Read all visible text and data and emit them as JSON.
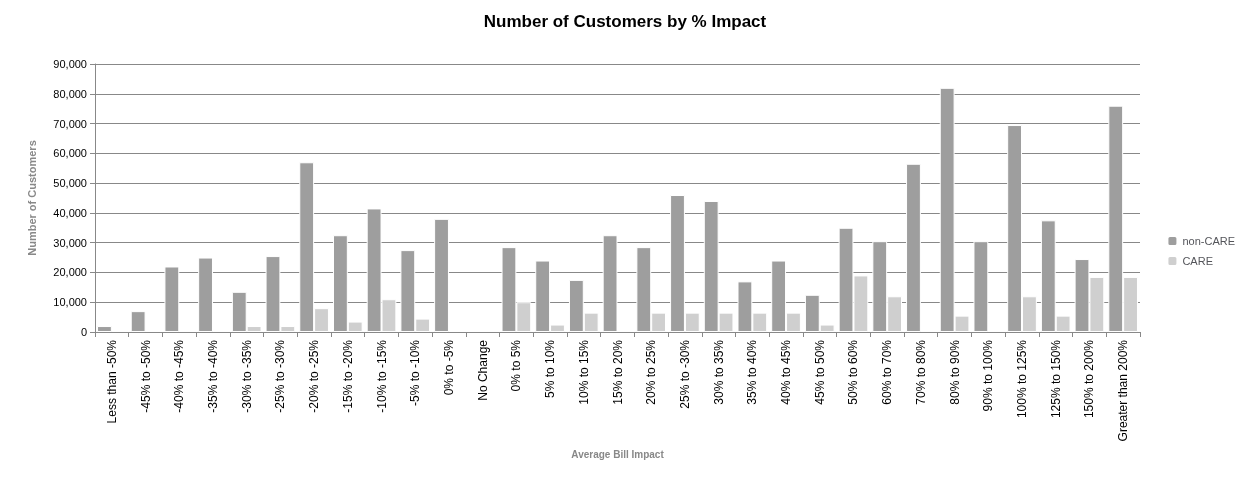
{
  "chart_data": {
    "type": "bar",
    "title": "Number of Customers by % Impact",
    "xlabel": "Average Bill Impact",
    "ylabel": "Number of Customers",
    "categories": [
      "Less than -50%",
      "-45% to -50%",
      "-40% to -45%",
      "-35% to -40%",
      "-30% to -35%",
      "-25% to -30%",
      "-20% to -25%",
      "-15% to -20%",
      "-10% to -15%",
      "-5% to -10%",
      "0% to -5%",
      "No Change",
      "0% to 5%",
      "5% to 10%",
      "10% to 15%",
      "15% to 20%",
      "20% to 25%",
      "25% to -30%",
      "30% to 35%",
      "35% to 40%",
      "40% to 45%",
      "45% to 50%",
      "50% to 60%",
      "60% to 70%",
      "70% to 80%",
      "80% to 90%",
      "90% to 100%",
      "100% to 125%",
      "125% to 150%",
      "150% to 200%",
      "Greater than 200%"
    ],
    "series": [
      {
        "name": "non-CARE",
        "color": "#9e9e9e",
        "values": [
          2000,
          7000,
          22000,
          25000,
          13500,
          25500,
          57000,
          32500,
          41500,
          27500,
          38000,
          null,
          28500,
          24000,
          17500,
          32500,
          28500,
          46000,
          44000,
          17000,
          24000,
          12500,
          35000,
          30500,
          56500,
          82000,
          30500,
          69500,
          37500,
          24500,
          76000
        ]
      },
      {
        "name": "CARE",
        "color": "#cfcfcf",
        "values": [
          null,
          null,
          null,
          null,
          2000,
          2000,
          8000,
          3500,
          11000,
          4500,
          null,
          null,
          10000,
          2500,
          6500,
          null,
          6500,
          6500,
          6500,
          6500,
          6500,
          2500,
          19000,
          12000,
          null,
          5500,
          null,
          12000,
          5500,
          18500,
          18500
        ]
      }
    ],
    "ylim": [
      0,
      90000
    ],
    "yticks": [
      0,
      {
        "value": 10000,
        "label": "10,000"
      },
      {
        "value": 20000,
        "label": "20,000"
      },
      {
        "value": 30000,
        "label": "30,000"
      },
      {
        "value": 40000,
        "label": "40,000"
      },
      {
        "value": 50000,
        "label": "50,000"
      },
      {
        "value": 60000,
        "label": "60,000"
      },
      {
        "value": 70000,
        "label": "70,000"
      },
      {
        "value": 80000,
        "label": "80,000"
      },
      {
        "value": 90000,
        "label": "90,000"
      }
    ],
    "grid": "y",
    "legend": "right"
  }
}
